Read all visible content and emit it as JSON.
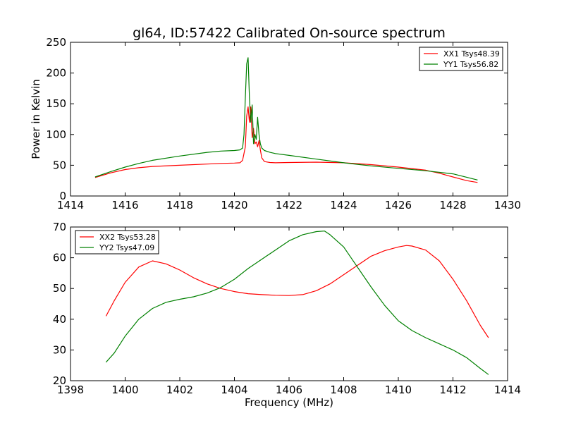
{
  "figure": {
    "title": "gl64, ID:57422 Calibrated On-source spectrum"
  },
  "chart_data": [
    {
      "type": "line",
      "title": "gl64, ID:57422 Calibrated On-source spectrum",
      "xlabel": "",
      "ylabel": "Power in Kelvin",
      "xlim": [
        1414,
        1430
      ],
      "ylim": [
        0,
        250
      ],
      "xticks": [
        "1414",
        "1416",
        "1418",
        "1420",
        "1422",
        "1424",
        "1426",
        "1428",
        "1430"
      ],
      "yticks": [
        "0",
        "50",
        "100",
        "150",
        "200",
        "250"
      ],
      "grid": false,
      "legend": "top-right",
      "series": [
        {
          "name": "XX1 Tsys48.39",
          "color": "#ff0000",
          "x": [
            1414.9,
            1415.5,
            1416,
            1416.5,
            1417,
            1418,
            1419,
            1419.5,
            1420,
            1420.2,
            1420.3,
            1420.4,
            1420.45,
            1420.5,
            1420.55,
            1420.6,
            1420.65,
            1420.7,
            1420.75,
            1420.8,
            1420.85,
            1420.9,
            1420.95,
            1421.0,
            1421.1,
            1421.3,
            1421.5,
            1422,
            1423,
            1424,
            1425,
            1426,
            1427,
            1427.5,
            1428,
            1428.5,
            1428.9
          ],
          "y": [
            30,
            38,
            43,
            46,
            48,
            50,
            52,
            53,
            53.5,
            54,
            58,
            80,
            130,
            145,
            120,
            145,
            95,
            110,
            85,
            88,
            80,
            90,
            75,
            62,
            56,
            54.5,
            54,
            54.5,
            55,
            54,
            51,
            47,
            42,
            37,
            31,
            25,
            22
          ]
        },
        {
          "name": "YY1 Tsys56.82",
          "color": "#008000",
          "x": [
            1414.9,
            1415.5,
            1416,
            1416.5,
            1417,
            1418,
            1419,
            1419.5,
            1420,
            1420.2,
            1420.3,
            1420.35,
            1420.4,
            1420.45,
            1420.5,
            1420.55,
            1420.6,
            1420.65,
            1420.7,
            1420.75,
            1420.8,
            1420.85,
            1420.9,
            1420.95,
            1421.0,
            1421.1,
            1421.3,
            1421.5,
            1422,
            1423,
            1424,
            1425,
            1426,
            1427,
            1428,
            1428.9
          ],
          "y": [
            31,
            40,
            47,
            53,
            58,
            65,
            71,
            73,
            74,
            75,
            78,
            100,
            160,
            215,
            225,
            160,
            120,
            148,
            85,
            100,
            92,
            128,
            100,
            85,
            78,
            74,
            71,
            69,
            66,
            60,
            54,
            49,
            45,
            41,
            36,
            26
          ]
        }
      ]
    },
    {
      "type": "line",
      "title": "",
      "xlabel": "Frequency (MHz)",
      "ylabel": "",
      "xlim": [
        1398,
        1414
      ],
      "ylim": [
        20,
        70
      ],
      "xticks": [
        "1398",
        "1400",
        "1402",
        "1404",
        "1406",
        "1408",
        "1410",
        "1412",
        "1414"
      ],
      "yticks": [
        "20",
        "30",
        "40",
        "50",
        "60",
        "70"
      ],
      "grid": false,
      "legend": "top-left",
      "series": [
        {
          "name": "XX2 Tsys53.28",
          "color": "#ff0000",
          "x": [
            1399.3,
            1399.6,
            1400,
            1400.5,
            1401,
            1401.5,
            1402,
            1402.5,
            1403,
            1403.5,
            1404,
            1404.5,
            1405,
            1405.5,
            1406,
            1406.5,
            1407,
            1407.5,
            1408,
            1408.5,
            1409,
            1409.5,
            1410,
            1410.3,
            1410.5,
            1411,
            1411.5,
            1412,
            1412.5,
            1413,
            1413.3
          ],
          "y": [
            41,
            46,
            52,
            57,
            59,
            58,
            56,
            53.5,
            51.5,
            50,
            49,
            48.3,
            48,
            47.8,
            47.7,
            48,
            49.3,
            51.5,
            54.5,
            57.5,
            60.5,
            62.3,
            63.5,
            64,
            63.8,
            62.5,
            59,
            53,
            46,
            38,
            34
          ]
        },
        {
          "name": "YY2 Tsys47.09",
          "color": "#008000",
          "x": [
            1399.3,
            1399.6,
            1400,
            1400.5,
            1401,
            1401.5,
            1402,
            1402.5,
            1403,
            1403.5,
            1404,
            1404.5,
            1405,
            1405.5,
            1406,
            1406.5,
            1407,
            1407.3,
            1407.5,
            1408,
            1408.5,
            1409,
            1409.5,
            1410,
            1410.5,
            1411,
            1411.5,
            1412,
            1412.5,
            1413,
            1413.3
          ],
          "y": [
            26,
            29,
            34.5,
            40,
            43.5,
            45.5,
            46.5,
            47.3,
            48.5,
            50.3,
            53,
            56.5,
            59.5,
            62.5,
            65.5,
            67.5,
            68.5,
            68.7,
            67.5,
            63.5,
            57,
            50.5,
            44.5,
            39.5,
            36.3,
            34,
            32,
            30,
            27.5,
            24,
            22
          ]
        }
      ]
    }
  ]
}
